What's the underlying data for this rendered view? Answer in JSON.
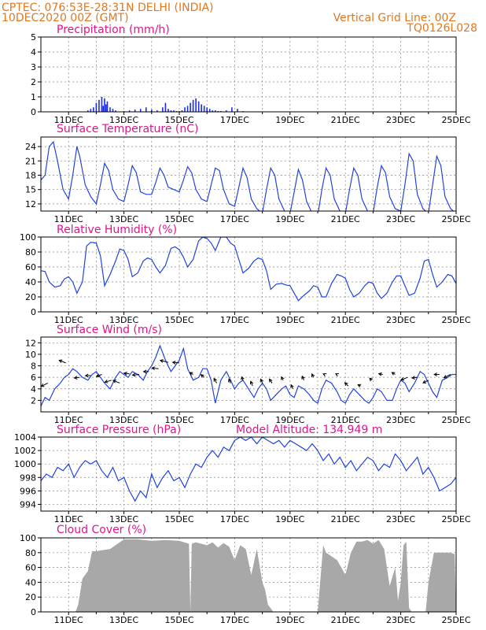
{
  "header": {
    "line1_left": "CPTEC:   076:53E-28:31N   DELHI (INDIA)",
    "line2_left": "10DEC2020 00Z (GMT)",
    "line1_right": "Vertical Grid Line: 00Z",
    "line2_right": "TQ0126L028"
  },
  "colors": {
    "header": "#e07820",
    "panel_title": "#e0148c",
    "line": "#2244dd",
    "bar": "#1a2ee8",
    "cloud": "#a8a8a8",
    "arrow": "#000000"
  },
  "chart_data": [
    {
      "type": "bar",
      "title": "Precipitation (mm/h)",
      "ylim": [
        0,
        5
      ],
      "yticks": [
        "0",
        "1",
        "2",
        "3",
        "4",
        "5"
      ],
      "xticks": [
        "11DEC",
        "13DEC",
        "15DEC",
        "17DEC",
        "19DEC",
        "21DEC",
        "23DEC",
        "25DEC"
      ],
      "x": [
        11.7,
        11.8,
        11.9,
        12.0,
        12.1,
        12.2,
        12.25,
        12.3,
        12.35,
        12.4,
        12.5,
        12.6,
        12.7,
        13.0,
        13.2,
        13.4,
        13.6,
        13.8,
        14.0,
        14.2,
        14.4,
        14.5,
        14.6,
        14.7,
        14.8,
        14.9,
        15.0,
        15.1,
        15.2,
        15.3,
        15.4,
        15.5,
        15.6,
        15.7,
        15.8,
        15.9,
        16.0,
        16.1,
        16.2,
        16.3,
        16.4,
        16.5,
        16.7,
        16.9,
        17.1,
        17.3
      ],
      "values": [
        0.1,
        0.2,
        0.3,
        0.6,
        0.8,
        1.0,
        0.4,
        0.9,
        0.5,
        0.7,
        0.3,
        0.2,
        0.1,
        0.05,
        0.1,
        0.15,
        0.2,
        0.3,
        0.15,
        0.1,
        0.3,
        0.6,
        0.2,
        0.1,
        0.1,
        0.05,
        0.05,
        0.1,
        0.3,
        0.4,
        0.6,
        0.8,
        0.9,
        0.7,
        0.5,
        0.4,
        0.3,
        0.2,
        0.1,
        0.1,
        0.05,
        0.05,
        0.1,
        0.3,
        0.2,
        0.05
      ]
    },
    {
      "type": "line",
      "title": "Surface Temperature (nC)",
      "ylim": [
        10.5,
        26
      ],
      "yticks": [
        "12",
        "15",
        "18",
        "21",
        "24"
      ],
      "xticks": [
        "11DEC",
        "13DEC",
        "15DEC",
        "17DEC",
        "19DEC",
        "21DEC",
        "23DEC",
        "25DEC"
      ],
      "x": [
        10.0,
        10.15,
        10.3,
        10.45,
        10.6,
        10.8,
        11.0,
        11.15,
        11.3,
        11.4,
        11.6,
        11.8,
        12.0,
        12.15,
        12.3,
        12.45,
        12.6,
        12.8,
        13.0,
        13.15,
        13.3,
        13.45,
        13.6,
        13.8,
        14.0,
        14.15,
        14.3,
        14.45,
        14.6,
        14.8,
        15.0,
        15.15,
        15.3,
        15.45,
        15.6,
        15.8,
        16.0,
        16.15,
        16.3,
        16.45,
        16.6,
        16.8,
        17.0,
        17.15,
        17.3,
        17.45,
        17.6,
        17.8,
        18.0,
        18.15,
        18.3,
        18.45,
        18.6,
        18.8,
        19.0,
        19.15,
        19.3,
        19.45,
        19.6,
        19.8,
        20.0,
        20.15,
        20.3,
        20.45,
        20.6,
        20.8,
        21.0,
        21.15,
        21.3,
        21.45,
        21.6,
        21.8,
        22.0,
        22.15,
        22.3,
        22.45,
        22.6,
        22.8,
        23.0,
        23.15,
        23.3,
        23.45,
        23.6,
        23.8,
        24.0,
        24.15,
        24.3,
        24.45,
        24.6,
        24.8,
        25.0
      ],
      "values": [
        17.0,
        18.0,
        24.0,
        25.0,
        21.0,
        15.0,
        13.0,
        18.0,
        24.0,
        22.0,
        16.0,
        13.5,
        12.0,
        16.0,
        20.5,
        19.0,
        15.0,
        13.0,
        12.5,
        16.0,
        20.0,
        18.5,
        14.5,
        14.0,
        14.0,
        16.5,
        19.5,
        18.0,
        15.5,
        15.0,
        14.5,
        17.0,
        19.8,
        18.5,
        15.0,
        13.0,
        12.5,
        16.0,
        19.5,
        19.0,
        15.0,
        12.0,
        11.5,
        15.5,
        19.5,
        17.5,
        13.0,
        11.0,
        10.0,
        15.0,
        19.5,
        18.0,
        13.0,
        10.5,
        10.0,
        14.5,
        19.2,
        17.0,
        12.5,
        10.0,
        9.5,
        15.0,
        19.5,
        18.0,
        13.0,
        10.5,
        10.0,
        15.0,
        19.5,
        18.0,
        13.0,
        10.5,
        10.0,
        15.5,
        20.0,
        18.5,
        13.5,
        11.0,
        10.5,
        16.0,
        22.5,
        21.0,
        14.0,
        11.0,
        10.0,
        16.0,
        22.0,
        20.0,
        13.5,
        11.0,
        10.0
      ]
    },
    {
      "type": "line",
      "title": "Relative Humidity (%)",
      "ylim": [
        0,
        100
      ],
      "yticks": [
        "0",
        "20",
        "40",
        "60",
        "80",
        "100"
      ],
      "xticks": [
        "11DEC",
        "13DEC",
        "15DEC",
        "17DEC",
        "19DEC",
        "21DEC",
        "23DEC",
        "25DEC"
      ],
      "x": [
        10.0,
        10.15,
        10.3,
        10.5,
        10.7,
        10.85,
        11.0,
        11.15,
        11.3,
        11.5,
        11.65,
        11.8,
        12.0,
        12.15,
        12.3,
        12.5,
        12.7,
        12.85,
        13.0,
        13.15,
        13.3,
        13.5,
        13.7,
        13.85,
        14.0,
        14.15,
        14.3,
        14.5,
        14.7,
        14.85,
        15.0,
        15.15,
        15.3,
        15.5,
        15.7,
        15.85,
        16.0,
        16.15,
        16.3,
        16.5,
        16.7,
        16.85,
        17.0,
        17.15,
        17.3,
        17.5,
        17.7,
        17.85,
        18.0,
        18.15,
        18.3,
        18.5,
        18.7,
        18.85,
        19.0,
        19.15,
        19.3,
        19.5,
        19.7,
        19.85,
        20.0,
        20.15,
        20.3,
        20.5,
        20.7,
        20.85,
        21.0,
        21.15,
        21.3,
        21.5,
        21.7,
        21.85,
        22.0,
        22.15,
        22.3,
        22.5,
        22.7,
        22.85,
        23.0,
        23.15,
        23.3,
        23.5,
        23.7,
        23.85,
        24.0,
        24.15,
        24.3,
        24.5,
        24.7,
        24.85,
        25.0
      ],
      "values": [
        55,
        54,
        40,
        33,
        35,
        44,
        47,
        40,
        25,
        40,
        88,
        93,
        92,
        75,
        35,
        50,
        68,
        84,
        82,
        70,
        47,
        52,
        68,
        72,
        70,
        60,
        52,
        62,
        85,
        87,
        83,
        73,
        60,
        70,
        95,
        100,
        98,
        92,
        82,
        100,
        100,
        92,
        88,
        70,
        52,
        58,
        68,
        72,
        70,
        55,
        30,
        37,
        38,
        36,
        35,
        25,
        15,
        22,
        28,
        35,
        33,
        20,
        20,
        38,
        50,
        48,
        45,
        30,
        20,
        25,
        35,
        40,
        38,
        25,
        18,
        25,
        40,
        48,
        48,
        35,
        22,
        25,
        45,
        68,
        70,
        50,
        33,
        40,
        50,
        48,
        38
      ]
    },
    {
      "type": "line",
      "title": "Surface Wind (m/s)",
      "ylim": [
        0,
        13
      ],
      "yticks": [
        "2",
        "4",
        "6",
        "8",
        "10",
        "12"
      ],
      "xticks": [
        "11DEC",
        "13DEC",
        "15DEC",
        "17DEC",
        "19DEC",
        "21DEC",
        "23DEC",
        "25DEC"
      ],
      "x": [
        10.0,
        10.15,
        10.3,
        10.5,
        10.7,
        10.85,
        11.0,
        11.15,
        11.3,
        11.5,
        11.7,
        11.85,
        12.0,
        12.15,
        12.3,
        12.5,
        12.7,
        12.85,
        13.0,
        13.15,
        13.3,
        13.5,
        13.7,
        13.85,
        14.0,
        14.15,
        14.3,
        14.5,
        14.7,
        14.85,
        15.0,
        15.15,
        15.3,
        15.5,
        15.7,
        15.85,
        16.0,
        16.15,
        16.3,
        16.5,
        16.7,
        16.85,
        17.0,
        17.15,
        17.3,
        17.5,
        17.7,
        17.85,
        18.0,
        18.15,
        18.3,
        18.5,
        18.7,
        18.85,
        19.0,
        19.15,
        19.3,
        19.5,
        19.7,
        19.85,
        20.0,
        20.15,
        20.3,
        20.5,
        20.7,
        20.85,
        21.0,
        21.15,
        21.3,
        21.5,
        21.7,
        21.85,
        22.0,
        22.15,
        22.3,
        22.5,
        22.7,
        22.85,
        23.0,
        23.15,
        23.3,
        23.5,
        23.7,
        23.85,
        24.0,
        24.15,
        24.3,
        24.5,
        24.7,
        24.85,
        25.0
      ],
      "values": [
        1.0,
        2.5,
        2.0,
        4.0,
        5.0,
        6.0,
        6.5,
        7.5,
        7.0,
        6.0,
        5.5,
        6.5,
        7.0,
        6.0,
        5.0,
        4.0,
        6.0,
        7.0,
        6.5,
        6.0,
        7.0,
        6.5,
        5.5,
        7.0,
        8.0,
        9.5,
        11.5,
        9.0,
        7.0,
        8.0,
        9.0,
        11.0,
        7.5,
        5.5,
        6.0,
        7.5,
        7.5,
        5.5,
        1.5,
        5.5,
        7.0,
        5.5,
        4.0,
        5.0,
        5.5,
        4.0,
        2.5,
        4.0,
        5.0,
        4.0,
        2.0,
        3.0,
        4.0,
        4.5,
        3.0,
        2.5,
        4.5,
        4.0,
        3.0,
        2.0,
        1.5,
        4.0,
        5.5,
        5.0,
        3.5,
        2.0,
        1.5,
        3.0,
        4.0,
        3.0,
        2.0,
        1.5,
        2.5,
        4.0,
        3.5,
        2.0,
        2.0,
        4.0,
        5.5,
        5.0,
        3.5,
        5.0,
        7.0,
        6.5,
        5.0,
        3.5,
        2.5,
        5.5,
        6.0,
        6.5,
        6.5
      ],
      "arrows": {
        "x": [
          10.25,
          10.9,
          11.4,
          11.8,
          12.2,
          12.55,
          12.85,
          13.2,
          13.55,
          13.9,
          14.25,
          14.6,
          15.0,
          15.5,
          15.9,
          16.35,
          16.85,
          17.3,
          17.65,
          18.0,
          18.35,
          18.75,
          19.1,
          19.5,
          19.85,
          20.25,
          20.7,
          21.1,
          21.55,
          21.95,
          22.35,
          22.8,
          23.25,
          23.6,
          24.0,
          24.4,
          24.8
        ],
        "u": [
          -2,
          -2,
          -1.6,
          -1.6,
          -1.6,
          -2,
          -2,
          -1.6,
          -2,
          -1.6,
          -2,
          -2.4,
          -2,
          -1,
          -1,
          -0.8,
          -0.5,
          -0.4,
          -0.6,
          -0.5,
          -0.8,
          -0.5,
          -0.5,
          -0.5,
          -0.5,
          -0.4,
          -0.4,
          -1.0,
          -0.8,
          -0.6,
          -1.2,
          -1,
          -2,
          -1.6,
          -1.6,
          -1.6,
          -2
        ],
        "v": [
          -1.0,
          0.8,
          -0.2,
          0.0,
          -0.6,
          -0.6,
          0.8,
          0.2,
          -0.2,
          0.0,
          0.2,
          0.6,
          0.2,
          0.6,
          0.8,
          1.4,
          1.2,
          1.0,
          1.4,
          1.2,
          1.2,
          1.0,
          1.2,
          1.2,
          1.0,
          0.2,
          0.2,
          1.0,
          0.4,
          0.6,
          0.2,
          0.6,
          -0.8,
          -0.2,
          -0.8,
          0.0,
          -1.0
        ],
        "y": [
          5.0,
          8.5,
          6.0,
          6.3,
          6.5,
          5.5,
          5.0,
          6.6,
          6.5,
          7.0,
          7.5,
          8.6,
          8.5,
          6.5,
          6.0,
          5.0,
          5.0,
          5.5,
          4.5,
          5.0,
          5.0,
          5.5,
          4.0,
          5.5,
          6.0,
          6.5,
          6.5,
          4.5,
          4.5,
          5.5,
          6.5,
          6.5,
          6.0,
          6.0,
          5.5,
          6.5,
          6.5
        ]
      }
    },
    {
      "type": "line",
      "title": "Surface Pressure (hPa)",
      "annotation": "Model Altitude: 134.949  m",
      "ylim": [
        993,
        1004
      ],
      "yticks": [
        "994",
        "996",
        "998",
        "1000",
        "1002",
        "1004"
      ],
      "xticks": [
        "11DEC",
        "13DEC",
        "15DEC",
        "17DEC",
        "19DEC",
        "21DEC",
        "23DEC",
        "25DEC"
      ],
      "x": [
        10.0,
        10.2,
        10.4,
        10.6,
        10.8,
        11.0,
        11.2,
        11.4,
        11.6,
        11.8,
        12.0,
        12.2,
        12.4,
        12.6,
        12.8,
        13.0,
        13.2,
        13.4,
        13.6,
        13.8,
        14.0,
        14.2,
        14.4,
        14.6,
        14.8,
        15.0,
        15.2,
        15.4,
        15.6,
        15.8,
        16.0,
        16.2,
        16.4,
        16.6,
        16.8,
        17.0,
        17.2,
        17.4,
        17.6,
        17.8,
        18.0,
        18.2,
        18.4,
        18.6,
        18.8,
        19.0,
        19.2,
        19.4,
        19.6,
        19.8,
        20.0,
        20.2,
        20.4,
        20.6,
        20.8,
        21.0,
        21.2,
        21.4,
        21.6,
        21.8,
        22.0,
        22.2,
        22.4,
        22.6,
        22.8,
        23.0,
        23.2,
        23.4,
        23.6,
        23.8,
        24.0,
        24.2,
        24.4,
        24.6,
        24.8,
        25.0
      ],
      "values": [
        997.5,
        998.5,
        998.0,
        999.5,
        999.0,
        1000.0,
        998.0,
        999.5,
        1000.5,
        1000.0,
        1000.5,
        999.0,
        998.0,
        999.5,
        997.5,
        998.0,
        996.0,
        994.5,
        996.0,
        995.0,
        998.5,
        996.5,
        998.0,
        999.0,
        997.5,
        998.0,
        996.5,
        998.5,
        1000.0,
        999.5,
        1001.0,
        1002.0,
        1001.0,
        1002.5,
        1002.0,
        1003.5,
        1004.0,
        1003.5,
        1004.0,
        1003.0,
        1004.0,
        1003.5,
        1003.0,
        1003.5,
        1002.5,
        1003.5,
        1003.0,
        1002.5,
        1002.0,
        1003.0,
        1002.0,
        1000.5,
        1001.5,
        1000.0,
        1001.0,
        999.5,
        1000.5,
        999.0,
        1000.0,
        1001.0,
        1000.5,
        999.0,
        1000.0,
        999.5,
        1001.5,
        1000.5,
        999.0,
        1000.0,
        1001.0,
        998.5,
        999.5,
        998.0,
        996.0,
        996.5,
        997.0,
        998.0
      ]
    },
    {
      "type": "area",
      "title": "Cloud Cover (%)",
      "ylim": [
        0,
        100
      ],
      "yticks": [
        "0",
        "20",
        "40",
        "60",
        "80",
        "100"
      ],
      "xticks": [
        "11DEC",
        "13DEC",
        "15DEC",
        "17DEC",
        "19DEC",
        "21DEC",
        "23DEC",
        "25DEC"
      ],
      "x": [
        10.0,
        11.25,
        11.35,
        11.5,
        11.7,
        11.85,
        12.0,
        12.5,
        13.0,
        13.5,
        14.0,
        14.5,
        15.0,
        15.35,
        15.4,
        15.45,
        15.6,
        16.0,
        16.2,
        16.4,
        16.6,
        16.8,
        17.0,
        17.2,
        17.4,
        17.6,
        17.8,
        18.0,
        18.1,
        18.2,
        18.4,
        20.0,
        20.2,
        20.3,
        20.5,
        20.7,
        21.0,
        21.2,
        21.4,
        21.6,
        21.8,
        22.0,
        22.2,
        22.4,
        22.6,
        22.8,
        22.9,
        23.0,
        23.1,
        23.2,
        23.3,
        23.4,
        23.5,
        23.6,
        23.9,
        24.0,
        24.2,
        24.4,
        24.6,
        24.8,
        24.95,
        25.0
      ],
      "values": [
        0,
        0,
        10,
        45,
        55,
        82,
        82,
        85,
        98,
        98,
        96,
        97,
        96,
        92,
        0,
        92,
        94,
        90,
        94,
        87,
        93,
        88,
        70,
        90,
        85,
        50,
        85,
        40,
        30,
        10,
        0,
        0,
        90,
        80,
        75,
        70,
        50,
        80,
        95,
        95,
        97,
        92,
        97,
        85,
        35,
        60,
        15,
        40,
        90,
        95,
        5,
        0,
        0,
        0,
        0,
        40,
        80,
        80,
        80,
        80,
        78,
        0
      ]
    }
  ]
}
